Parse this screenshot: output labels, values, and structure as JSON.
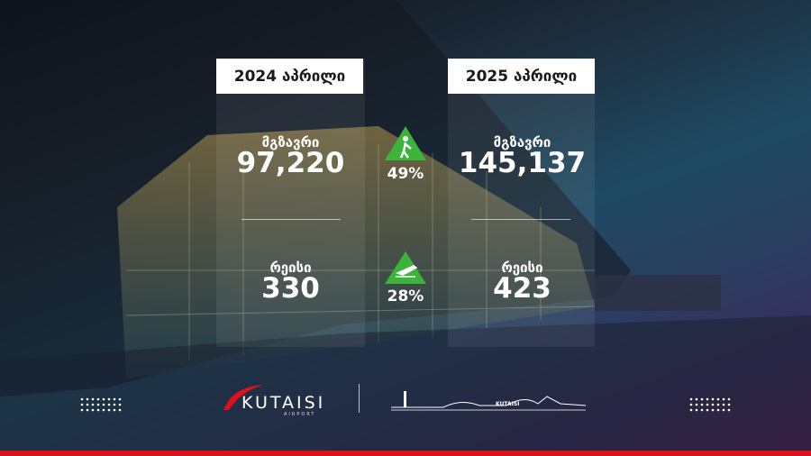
{
  "columns": [
    {
      "header": "2024 აპრილი",
      "passengers_label": "მგზავრი",
      "passengers": "97,220",
      "flights_label": "რეისი",
      "flights": "330"
    },
    {
      "header": "2025 აპრილი",
      "passengers_label": "მგზავრი",
      "passengers": "145,137",
      "flights_label": "რეისი",
      "flights": "423"
    }
  ],
  "changes": {
    "passengers": "49%",
    "flights": "28%"
  },
  "logo": {
    "name": "KUTAISI",
    "subtitle": "AIRPORT"
  },
  "terminal_logo": "KUTAISI"
}
